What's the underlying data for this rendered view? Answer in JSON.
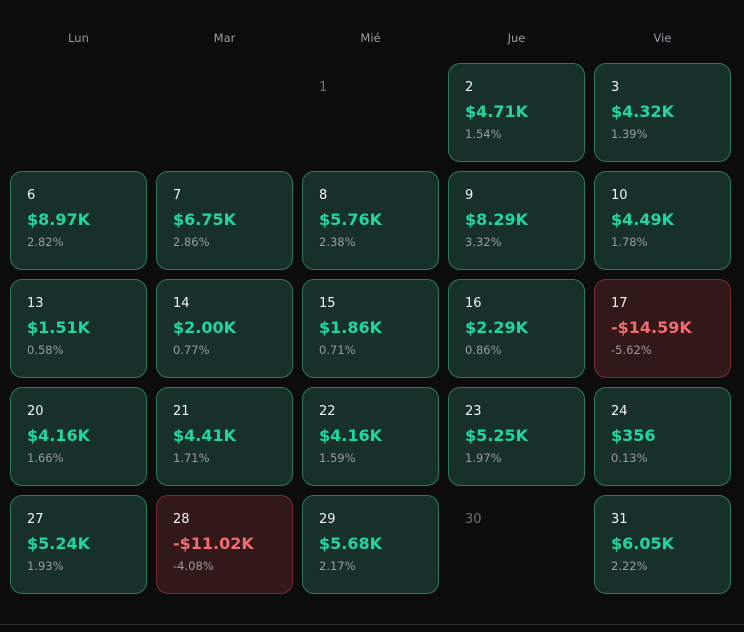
{
  "weekdays": [
    "Lun",
    "Mar",
    "Mié",
    "Jue",
    "Vie"
  ],
  "colors": {
    "positive": "#1fd6a2",
    "negative": "#f26b6f"
  },
  "cells": [
    {
      "type": "empty",
      "day": ""
    },
    {
      "type": "empty",
      "day": ""
    },
    {
      "type": "empty",
      "day": "1"
    },
    {
      "type": "pos",
      "day": "2",
      "amount": "$4.71K",
      "pct": "1.54%"
    },
    {
      "type": "pos",
      "day": "3",
      "amount": "$4.32K",
      "pct": "1.39%"
    },
    {
      "type": "pos",
      "day": "6",
      "amount": "$8.97K",
      "pct": "2.82%"
    },
    {
      "type": "pos",
      "day": "7",
      "amount": "$6.75K",
      "pct": "2.86%"
    },
    {
      "type": "pos",
      "day": "8",
      "amount": "$5.76K",
      "pct": "2.38%"
    },
    {
      "type": "pos",
      "day": "9",
      "amount": "$8.29K",
      "pct": "3.32%"
    },
    {
      "type": "pos",
      "day": "10",
      "amount": "$4.49K",
      "pct": "1.78%"
    },
    {
      "type": "pos",
      "day": "13",
      "amount": "$1.51K",
      "pct": "0.58%"
    },
    {
      "type": "pos",
      "day": "14",
      "amount": "$2.00K",
      "pct": "0.77%"
    },
    {
      "type": "pos",
      "day": "15",
      "amount": "$1.86K",
      "pct": "0.71%"
    },
    {
      "type": "pos",
      "day": "16",
      "amount": "$2.29K",
      "pct": "0.86%"
    },
    {
      "type": "neg",
      "day": "17",
      "amount": "-$14.59K",
      "pct": "-5.62%"
    },
    {
      "type": "pos",
      "day": "20",
      "amount": "$4.16K",
      "pct": "1.66%"
    },
    {
      "type": "pos",
      "day": "21",
      "amount": "$4.41K",
      "pct": "1.71%"
    },
    {
      "type": "pos",
      "day": "22",
      "amount": "$4.16K",
      "pct": "1.59%"
    },
    {
      "type": "pos",
      "day": "23",
      "amount": "$5.25K",
      "pct": "1.97%"
    },
    {
      "type": "pos",
      "day": "24",
      "amount": "$356",
      "pct": "0.13%"
    },
    {
      "type": "pos",
      "day": "27",
      "amount": "$5.24K",
      "pct": "1.93%"
    },
    {
      "type": "neg",
      "day": "28",
      "amount": "-$11.02K",
      "pct": "-4.08%"
    },
    {
      "type": "pos",
      "day": "29",
      "amount": "$5.68K",
      "pct": "2.17%"
    },
    {
      "type": "empty",
      "day": "30"
    },
    {
      "type": "pos",
      "day": "31",
      "amount": "$6.05K",
      "pct": "2.22%"
    }
  ]
}
